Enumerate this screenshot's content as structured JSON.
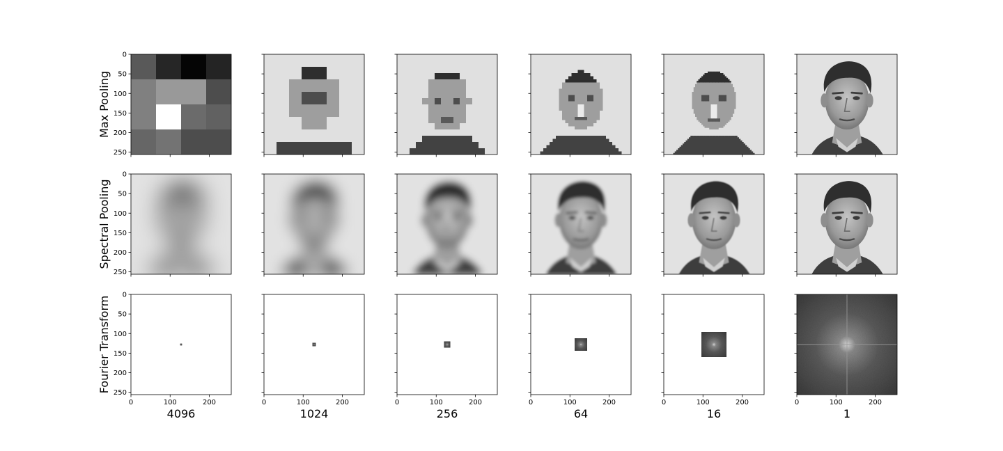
{
  "chart_data": {
    "type": "image-grid",
    "row_labels": [
      "Max Pooling",
      "Spectral Pooling",
      "Fourier Transform"
    ],
    "column_labels": [
      "4096",
      "1024",
      "256",
      "64",
      "16",
      "1"
    ],
    "x_ticks": [
      0,
      100,
      200
    ],
    "y_ticks": [
      0,
      50,
      100,
      150,
      200,
      250
    ],
    "image_size": 256,
    "max_pool_grid": [
      4,
      8,
      16,
      32,
      64,
      256
    ],
    "spectral_blur_sigma": [
      28,
      18,
      9,
      4,
      1.5,
      0
    ],
    "fourier_window": [
      4,
      8,
      16,
      32,
      64,
      256
    ],
    "colormap": "gray"
  }
}
